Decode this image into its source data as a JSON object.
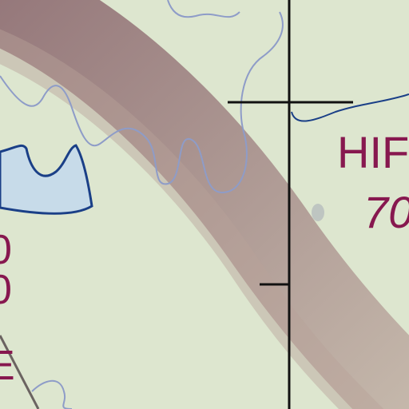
{
  "map": {
    "colors": {
      "land": "#dde6cf",
      "shade_dark": "#8c6a70",
      "shade_light": "#c3b4a8",
      "water_fill": "#c7dbe9",
      "water_outline": "#1a3f87",
      "stream": "#8e9cc8",
      "label": "#87184f",
      "grid_line": "#111111",
      "road": "#6b6361"
    },
    "labels": {
      "name_fragment": "HIF",
      "number_fragment": "70"
    }
  }
}
